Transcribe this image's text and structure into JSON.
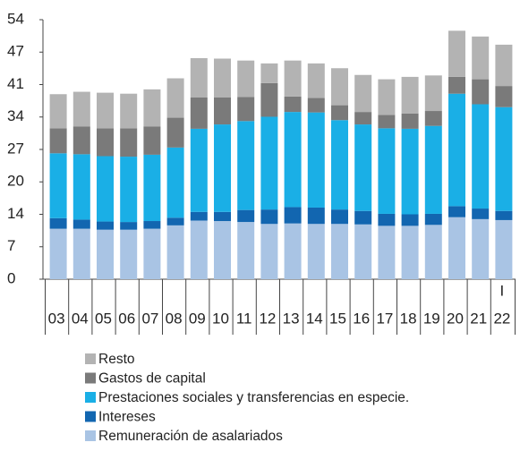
{
  "chart_data": {
    "type": "stacked_bar",
    "categories": [
      "03",
      "04",
      "05",
      "06",
      "07",
      "08",
      "09",
      "10",
      "11",
      "12",
      "13",
      "14",
      "15",
      "16",
      "17",
      "18",
      "19",
      "20",
      "21",
      "22"
    ],
    "annotation": "I",
    "series": [
      {
        "name": "Remuneración de asalariados",
        "color": "#a9c4e4",
        "values": [
          10.5,
          10.5,
          10.3,
          10.3,
          10.5,
          11.2,
          12.2,
          12.1,
          11.9,
          11.5,
          11.6,
          11.5,
          11.5,
          11.4,
          11.1,
          11.1,
          11.3,
          12.9,
          12.5,
          12.3
        ]
      },
      {
        "name": "Intereses",
        "color": "#1266b0",
        "values": [
          2.2,
          1.9,
          1.7,
          1.6,
          1.6,
          1.6,
          1.8,
          1.9,
          2.5,
          3.0,
          3.4,
          3.4,
          3.0,
          2.8,
          2.5,
          2.4,
          2.3,
          2.3,
          2.2,
          1.9
        ]
      },
      {
        "name": "Prestaciones sociales y transferencias en especie.",
        "color": "#1aafe6",
        "values": [
          13.5,
          13.6,
          13.6,
          13.6,
          13.8,
          14.6,
          17.3,
          18.2,
          18.5,
          19.3,
          19.8,
          19.8,
          18.6,
          18.0,
          17.8,
          17.8,
          18.3,
          23.4,
          21.7,
          21.6
        ]
      },
      {
        "name": "Gastos de capital",
        "color": "#7a7a7a",
        "values": [
          5.2,
          5.8,
          5.8,
          5.9,
          5.9,
          6.2,
          6.5,
          5.6,
          5.0,
          7.0,
          3.2,
          3.0,
          3.1,
          2.6,
          2.8,
          3.2,
          3.1,
          3.5,
          5.2,
          4.4
        ]
      },
      {
        "name": "Resto",
        "color": "#b3b3b3",
        "values": [
          7.1,
          7.2,
          7.4,
          7.2,
          7.7,
          8.2,
          8.2,
          8.1,
          7.6,
          4.1,
          7.5,
          7.2,
          7.7,
          7.7,
          7.4,
          7.6,
          7.4,
          9.6,
          8.9,
          8.6
        ]
      }
    ],
    "ylim": [
      0,
      54
    ],
    "yticks": [
      0,
      {
        "value": 6.75,
        "label": "7"
      },
      {
        "value": 13.5,
        "label": "14"
      },
      {
        "value": 20.25,
        "label": "20"
      },
      27,
      {
        "value": 33.75,
        "label": "34"
      },
      {
        "value": 40.5,
        "label": "41"
      },
      {
        "value": 47.25,
        "label": "47"
      },
      54
    ],
    "grid": false,
    "legend": "bottom"
  }
}
